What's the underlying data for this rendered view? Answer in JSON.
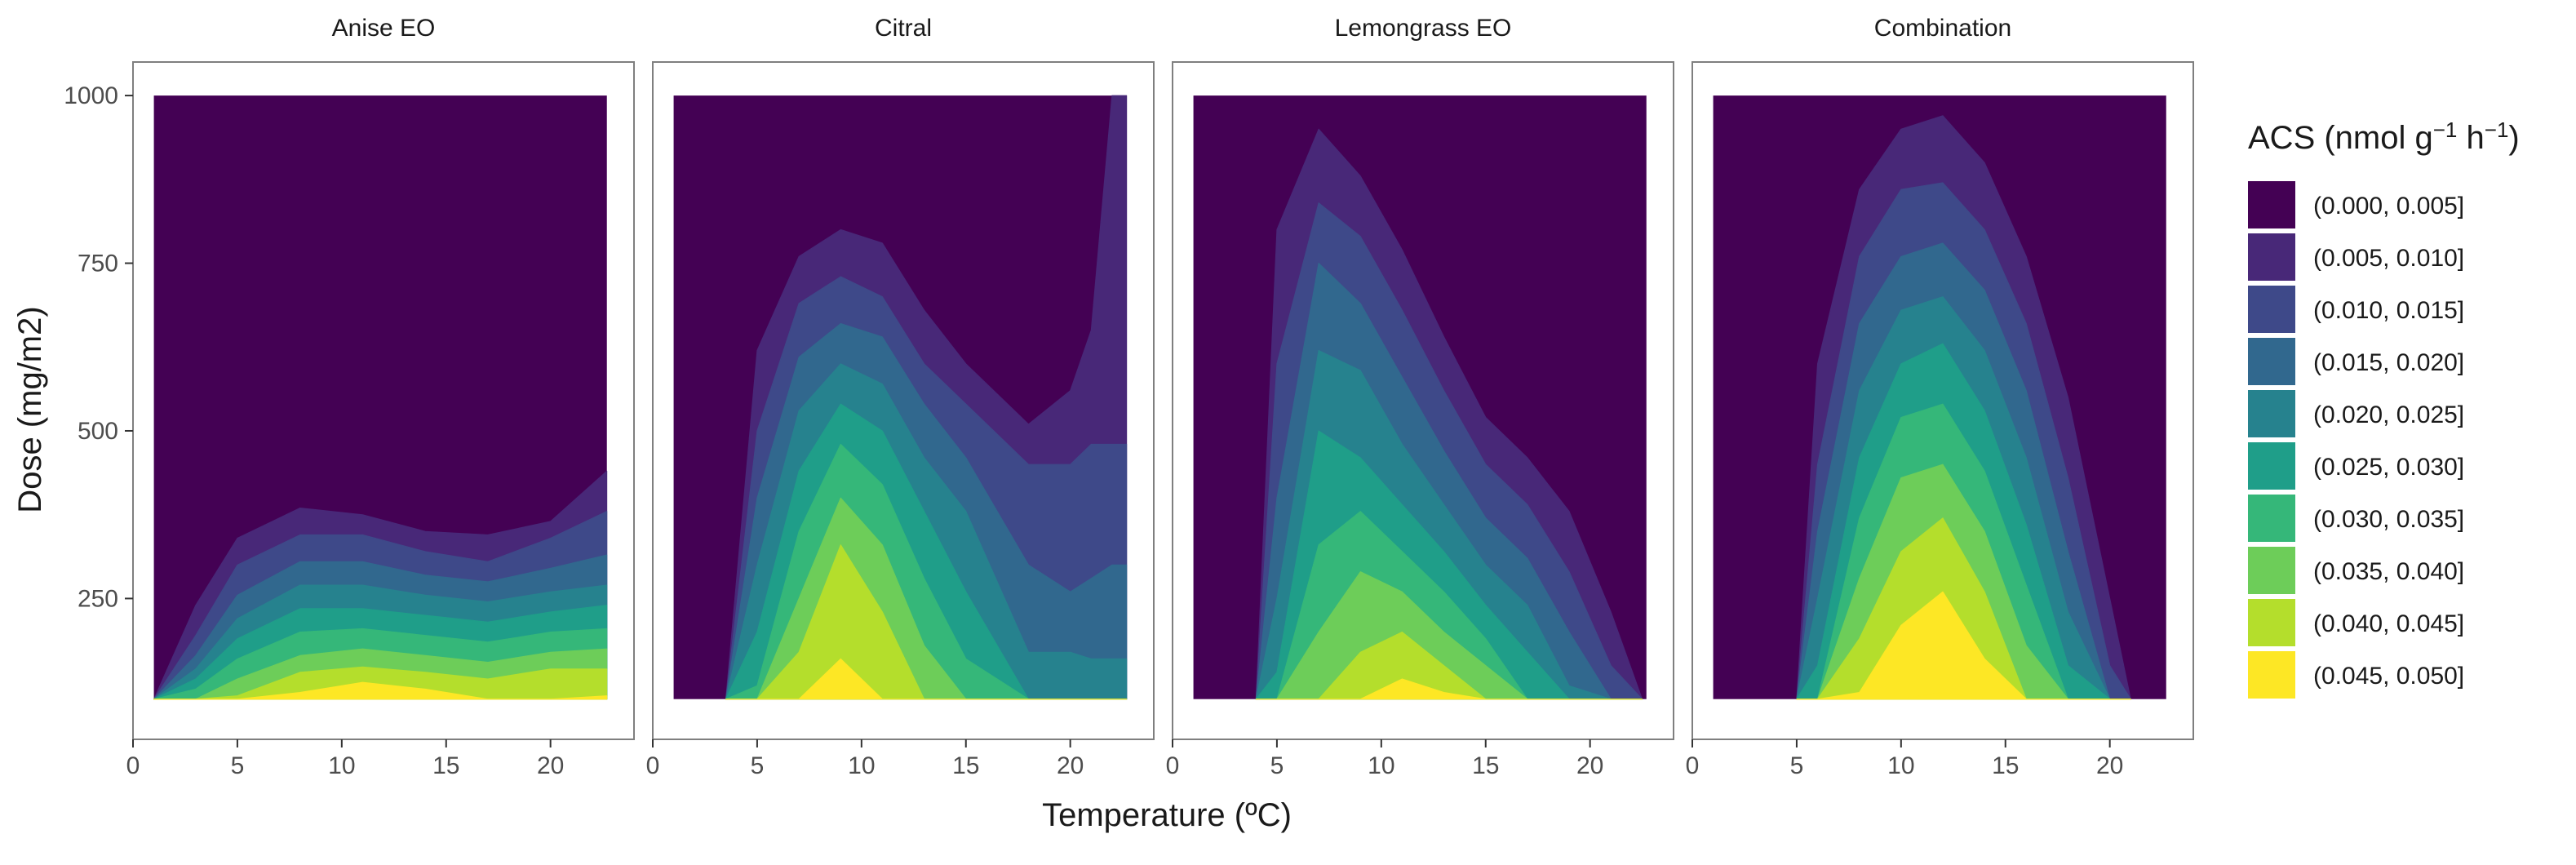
{
  "chart_data": {
    "type": "contour",
    "xlabel": "Temperature (ºC)",
    "ylabel": "Dose (mg/m2)",
    "xlim": [
      0,
      24
    ],
    "ylim": [
      40,
      1050
    ],
    "data_x_range": [
      1,
      22.7
    ],
    "data_y_range": [
      100,
      1000
    ],
    "x_ticks": [
      "0",
      "5",
      "10",
      "15",
      "20"
    ],
    "y_ticks": [
      "250",
      "500",
      "750",
      "1000"
    ],
    "x_tick_values": [
      0,
      5,
      10,
      15,
      20
    ],
    "y_tick_values": [
      250,
      500,
      750,
      1000
    ],
    "panels": [
      {
        "title": "Anise EO",
        "peak": {
          "temperature": 11.5,
          "dose": 100,
          "acs_max": 0.05
        },
        "max_dose_by_temperature": [
          [
            1,
            0.001,
            0.005,
            0.01,
            0.015,
            0.02,
            0.025,
            0.03,
            0.035,
            0.04,
            0.045
          ],
          [
            1,
            100,
            100,
            100,
            100,
            100,
            100,
            100,
            100,
            100,
            100
          ],
          [
            3,
            240,
            195,
            165,
            145,
            130,
            115,
            100,
            100,
            100,
            100
          ],
          [
            5,
            340,
            300,
            255,
            220,
            190,
            160,
            130,
            105,
            100,
            100
          ],
          [
            8,
            385,
            345,
            305,
            270,
            235,
            200,
            165,
            140,
            110,
            100
          ],
          [
            11,
            375,
            345,
            305,
            270,
            235,
            205,
            175,
            148,
            125,
            118
          ],
          [
            14,
            350,
            320,
            285,
            255,
            225,
            195,
            165,
            140,
            115,
            100
          ],
          [
            17,
            345,
            305,
            275,
            245,
            215,
            185,
            155,
            130,
            100,
            100
          ],
          [
            20,
            365,
            340,
            295,
            260,
            230,
            200,
            170,
            145,
            100,
            100
          ],
          [
            22.7,
            440,
            380,
            315,
            270,
            240,
            205,
            175,
            145,
            105,
            100
          ]
        ]
      },
      {
        "title": "Citral",
        "peak": {
          "temperature": 9,
          "dose": 100,
          "acs_max": 0.045
        },
        "max_dose_by_temperature": [
          [
            3,
            0.001,
            0.005,
            0.01,
            0.015,
            0.02,
            0.025,
            0.03,
            0.035,
            0.04
          ],
          [
            3.5,
            100,
            100,
            100,
            100,
            100,
            100,
            100,
            100,
            100
          ],
          [
            5,
            620,
            500,
            400,
            300,
            200,
            120,
            100,
            100,
            100
          ],
          [
            7,
            760,
            690,
            610,
            530,
            440,
            350,
            250,
            170,
            100
          ],
          [
            9,
            800,
            730,
            660,
            600,
            540,
            480,
            400,
            330,
            160
          ],
          [
            11,
            780,
            700,
            640,
            570,
            500,
            420,
            330,
            230,
            100
          ],
          [
            13,
            680,
            600,
            540,
            460,
            380,
            280,
            180,
            100,
            100
          ],
          [
            15,
            600,
            540,
            460,
            380,
            260,
            160,
            100,
            100,
            100
          ],
          [
            18,
            510,
            450,
            300,
            170,
            100,
            100,
            100,
            100,
            100
          ],
          [
            20,
            560,
            450,
            260,
            170,
            100,
            100,
            100,
            100,
            100
          ],
          [
            21,
            650,
            480,
            280,
            160,
            100,
            100,
            100,
            100,
            100
          ],
          [
            22,
            1000,
            480,
            300,
            160,
            100,
            100,
            100,
            100,
            100
          ],
          [
            22.7,
            1000,
            480,
            300,
            160,
            100,
            100,
            100,
            100,
            100
          ]
        ]
      },
      {
        "title": "Lemongrass EO",
        "peak": {
          "temperature": 12,
          "dose": 100,
          "acs_max": 0.045
        },
        "max_dose_by_temperature": [
          [
            3.5,
            0.001,
            0.005,
            0.01,
            0.015,
            0.02,
            0.025,
            0.03,
            0.035,
            0.04
          ],
          [
            4,
            100,
            100,
            100,
            100,
            100,
            100,
            100,
            100,
            100
          ],
          [
            5,
            800,
            600,
            400,
            250,
            140,
            100,
            100,
            100,
            100
          ],
          [
            7,
            950,
            840,
            750,
            620,
            500,
            330,
            200,
            100,
            100
          ],
          [
            9,
            880,
            790,
            690,
            590,
            460,
            380,
            290,
            170,
            100
          ],
          [
            11,
            770,
            680,
            580,
            480,
            390,
            320,
            260,
            200,
            130
          ],
          [
            13,
            640,
            560,
            470,
            390,
            320,
            260,
            200,
            150,
            110
          ],
          [
            15,
            520,
            450,
            370,
            300,
            240,
            190,
            150,
            100,
            100
          ],
          [
            17,
            460,
            390,
            310,
            240,
            170,
            100,
            100,
            100,
            100
          ],
          [
            19,
            380,
            290,
            200,
            120,
            100,
            100,
            100,
            100,
            100
          ],
          [
            21,
            230,
            150,
            100,
            100,
            100,
            100,
            100,
            100,
            100
          ],
          [
            22.5,
            100,
            100,
            100,
            100,
            100,
            100,
            100,
            100,
            100
          ]
        ]
      },
      {
        "title": "Combination",
        "peak": {
          "temperature": 11.7,
          "dose": 100,
          "acs_max": 0.05
        },
        "max_dose_by_temperature": [
          [
            4.5,
            0.001,
            0.005,
            0.01,
            0.015,
            0.02,
            0.025,
            0.03,
            0.035,
            0.04,
            0.045
          ],
          [
            5,
            100,
            100,
            100,
            100,
            100,
            100,
            100,
            100,
            100,
            100
          ],
          [
            6,
            600,
            450,
            350,
            250,
            150,
            100,
            100,
            100,
            100,
            100
          ],
          [
            8,
            860,
            760,
            660,
            560,
            460,
            370,
            280,
            190,
            110,
            100
          ],
          [
            10,
            950,
            860,
            760,
            680,
            600,
            520,
            430,
            320,
            210,
            100
          ],
          [
            12,
            970,
            870,
            780,
            700,
            630,
            540,
            450,
            370,
            260,
            110
          ],
          [
            14,
            900,
            800,
            710,
            620,
            530,
            440,
            350,
            260,
            160,
            100
          ],
          [
            16,
            760,
            660,
            560,
            460,
            360,
            270,
            180,
            100,
            100,
            100
          ],
          [
            18,
            550,
            430,
            320,
            230,
            150,
            100,
            100,
            100,
            100,
            100
          ],
          [
            20,
            250,
            150,
            100,
            100,
            100,
            100,
            100,
            100,
            100,
            100
          ],
          [
            21,
            100,
            100,
            100,
            100,
            100,
            100,
            100,
            100,
            100,
            100
          ]
        ]
      }
    ],
    "legend": {
      "title": "ACS (nmol g",
      "title_sup1": "−1",
      "title_mid": " h",
      "title_sup2": "−1",
      "title_end": ")",
      "position": "right",
      "items": [
        {
          "label": "(0.000, 0.005]",
          "color": "#440154"
        },
        {
          "label": "(0.005, 0.010]",
          "color": "#482878"
        },
        {
          "label": "(0.010, 0.015]",
          "color": "#3E4989"
        },
        {
          "label": "(0.015, 0.020]",
          "color": "#31688E"
        },
        {
          "label": "(0.020, 0.025]",
          "color": "#26828E"
        },
        {
          "label": "(0.025, 0.030]",
          "color": "#1F9E89"
        },
        {
          "label": "(0.030, 0.035]",
          "color": "#35B779"
        },
        {
          "label": "(0.035, 0.040]",
          "color": "#6DCD59"
        },
        {
          "label": "(0.040, 0.045]",
          "color": "#B4DE2C"
        },
        {
          "label": "(0.045, 0.050]",
          "color": "#FDE725"
        }
      ]
    },
    "grid": false,
    "strip_background": "#ffffff",
    "panel_border_color": "#7f7f7f"
  }
}
